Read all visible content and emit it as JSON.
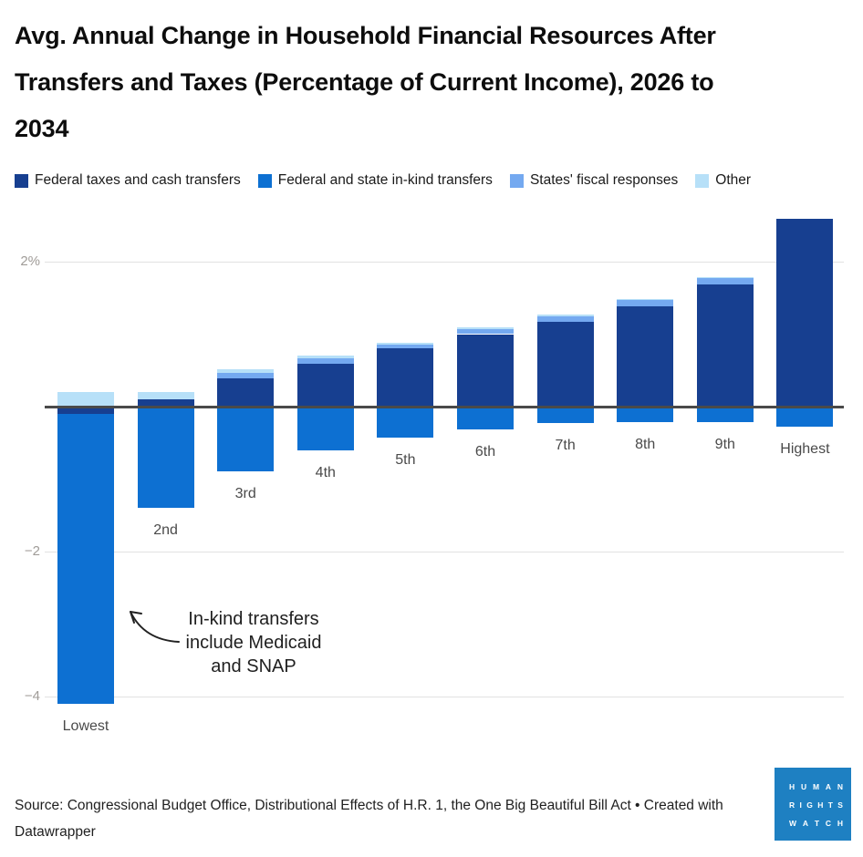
{
  "title": "Avg. Annual Change in Household Financial Resources After Transfers and Taxes (Percentage of Current Income), 2026 to 2034",
  "chart_data": {
    "type": "bar",
    "stacked": true,
    "title": "Avg. Annual Change in Household Financial Resources After Transfers and Taxes (Percentage of Current Income), 2026 to 2034",
    "categories": [
      "Lowest",
      "2nd",
      "3rd",
      "4th",
      "5th",
      "6th",
      "7th",
      "8th",
      "9th",
      "Highest"
    ],
    "series": [
      {
        "name": "Federal taxes and cash transfers",
        "color": "#173f90",
        "values": [
          -0.1,
          0.1,
          0.39,
          0.59,
          0.8,
          1.0,
          1.17,
          1.38,
          1.69,
          2.59
        ]
      },
      {
        "name": "Federal and state in-kind transfers",
        "color": "#0d70d2",
        "values": [
          -4.0,
          -1.4,
          -0.89,
          -0.6,
          -0.43,
          -0.32,
          -0.23,
          -0.22,
          -0.21,
          -0.28
        ]
      },
      {
        "name": "States' fiscal responses",
        "color": "#74a9f0",
        "values": [
          0.0,
          0.0,
          0.08,
          0.08,
          0.06,
          0.07,
          0.08,
          0.09,
          0.08,
          0.0
        ]
      },
      {
        "name": "Other",
        "color": "#b7e0f8",
        "values": [
          0.2,
          0.1,
          0.04,
          0.04,
          0.02,
          0.02,
          0.02,
          0.02,
          0.02,
          0.0
        ]
      }
    ],
    "yticks": [
      {
        "label": "2%",
        "value": 2
      },
      {
        "label": "−2",
        "value": -2
      },
      {
        "label": "−4",
        "value": -4
      }
    ],
    "ylim": [
      -4.35,
      2.75
    ],
    "xlabel": "",
    "ylabel": "",
    "grid": true,
    "legend_position": "top"
  },
  "annotation": {
    "lines": [
      "In-kind transfers",
      "include Medicaid",
      "and SNAP"
    ]
  },
  "source": {
    "text": "Source: Congressional Budget Office, Distributional Effects of H.R. 1, the One Big Beautiful Bill Act • Created with Datawrapper"
  },
  "logo": {
    "lines": [
      "HUMAN",
      "RIGHTS",
      "WATCH"
    ],
    "background": "#1e80c2"
  }
}
